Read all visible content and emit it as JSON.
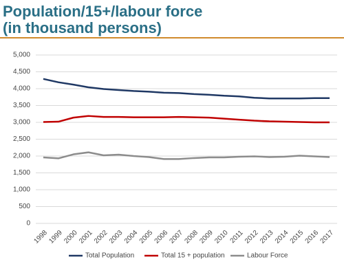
{
  "chart_data": {
    "type": "line",
    "title": [
      "Population/15+/labour force",
      "(in thousand persons)"
    ],
    "categories": [
      "1998",
      "1999",
      "2000",
      "2001",
      "2002",
      "2003",
      "2004",
      "2005",
      "2006",
      "2007",
      "2008",
      "2009",
      "2010",
      "2011",
      "2012",
      "2013",
      "2014",
      "2015",
      "2016",
      "2017"
    ],
    "series": [
      {
        "name": "Total Population",
        "color": "#1f3864",
        "values": [
          4290,
          4190,
          4120,
          4040,
          3990,
          3960,
          3930,
          3910,
          3880,
          3870,
          3840,
          3820,
          3790,
          3770,
          3730,
          3710,
          3710,
          3710,
          3720,
          3720
        ]
      },
      {
        "name": "Total 15 + population",
        "color": "#c00000",
        "values": [
          3010,
          3020,
          3140,
          3190,
          3160,
          3160,
          3150,
          3150,
          3150,
          3160,
          3150,
          3140,
          3110,
          3080,
          3050,
          3030,
          3020,
          3010,
          3000,
          3000
        ]
      },
      {
        "name": "Labour Force",
        "color": "#8c8c8c",
        "values": [
          1960,
          1930,
          2050,
          2110,
          2020,
          2040,
          2000,
          1970,
          1910,
          1910,
          1940,
          1960,
          1960,
          1980,
          1990,
          1970,
          1980,
          2010,
          1990,
          1970
        ]
      }
    ],
    "ylim": [
      0,
      5000
    ],
    "yticks": [
      0,
      500,
      {
        "value": 1000,
        "label": "1,000"
      },
      {
        "value": 1500,
        "label": "1,500"
      },
      {
        "value": 2000,
        "label": "2,000"
      },
      {
        "value": 2500,
        "label": "2,500"
      },
      {
        "value": 3000,
        "label": "3,000"
      },
      {
        "value": 3500,
        "label": "3,500"
      },
      {
        "value": 4000,
        "label": "4,000"
      },
      {
        "value": 4500,
        "label": "4,500"
      },
      {
        "value": 5000,
        "label": "5,000"
      }
    ],
    "grid": true,
    "legend": "bottom"
  }
}
